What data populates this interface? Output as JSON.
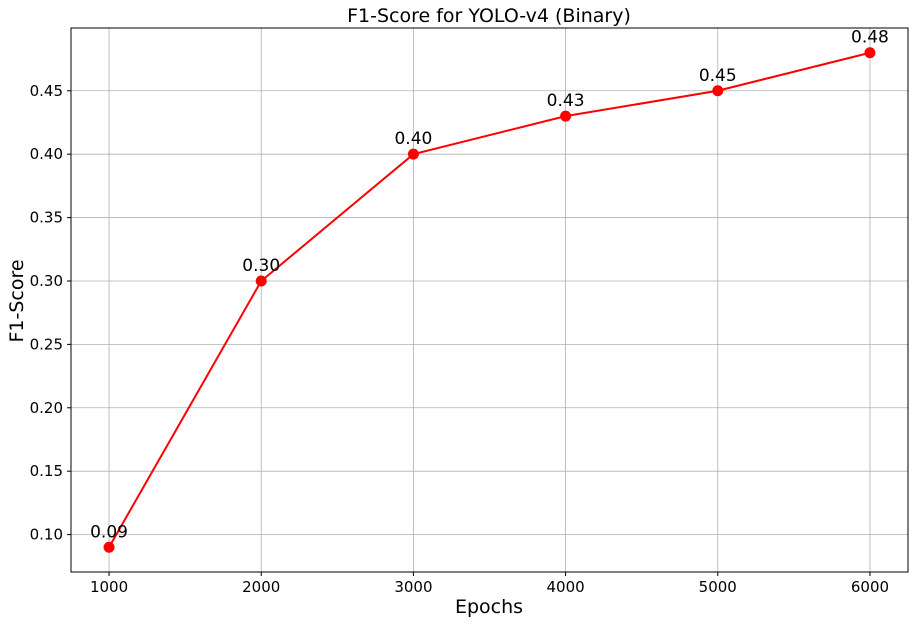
{
  "chart_data": {
    "type": "line",
    "title": "F1-Score for YOLO-v4 (Binary)",
    "xlabel": "Epochs",
    "ylabel": "F1-Score",
    "x": [
      1000,
      2000,
      3000,
      4000,
      5000,
      6000
    ],
    "series": [
      {
        "values": [
          0.09,
          0.3,
          0.4,
          0.43,
          0.45,
          0.48
        ],
        "labels": [
          "0.09",
          "0.30",
          "0.40",
          "0.43",
          "0.45",
          "0.48"
        ],
        "color": "#ff0000",
        "marker": "circle"
      }
    ],
    "xlim": [
      750,
      6250
    ],
    "ylim": [
      0.0705,
      0.4995
    ],
    "xticks": [
      1000,
      2000,
      3000,
      4000,
      5000,
      6000
    ],
    "xtick_labels": [
      "1000",
      "2000",
      "3000",
      "4000",
      "5000",
      "6000"
    ],
    "yticks": [
      0.1,
      0.15,
      0.2,
      0.25,
      0.3,
      0.35,
      0.4,
      0.45
    ],
    "ytick_labels": [
      "0.10",
      "0.15",
      "0.20",
      "0.25",
      "0.30",
      "0.35",
      "0.40",
      "0.45"
    ],
    "grid": true,
    "legend": "none"
  }
}
